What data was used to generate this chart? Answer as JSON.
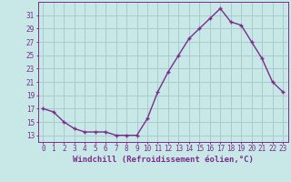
{
  "x": [
    0,
    1,
    2,
    3,
    4,
    5,
    6,
    7,
    8,
    9,
    10,
    11,
    12,
    13,
    14,
    15,
    16,
    17,
    18,
    19,
    20,
    21,
    22,
    23
  ],
  "y": [
    17,
    16.5,
    15,
    14,
    13.5,
    13.5,
    13.5,
    13,
    13,
    13,
    15.5,
    19.5,
    22.5,
    25,
    27.5,
    29,
    30.5,
    32,
    30,
    29.5,
    27,
    24.5,
    21,
    19.5
  ],
  "line_color": "#7B2D8B",
  "marker": "+",
  "background_color": "#C8E8E8",
  "grid_color": "#A8CCCC",
  "axis_color": "#7B2D8B",
  "tick_color": "#7B2D8B",
  "label_color": "#7B2D8B",
  "xlabel": "Windchill (Refroidissement éolien,°C)",
  "xlabel_fontsize": 6.5,
  "ytick_labels": [
    13,
    15,
    17,
    19,
    21,
    23,
    25,
    27,
    29,
    31
  ],
  "ylim": [
    12.0,
    33.0
  ],
  "xlim": [
    -0.5,
    23.5
  ],
  "xtick_labels": [
    "0",
    "1",
    "2",
    "3",
    "4",
    "5",
    "6",
    "7",
    "8",
    "9",
    "10",
    "11",
    "12",
    "13",
    "14",
    "15",
    "16",
    "17",
    "18",
    "19",
    "20",
    "21",
    "22",
    "23"
  ],
  "tick_fontsize": 5.5,
  "line_width": 1.0,
  "marker_size": 3.5
}
